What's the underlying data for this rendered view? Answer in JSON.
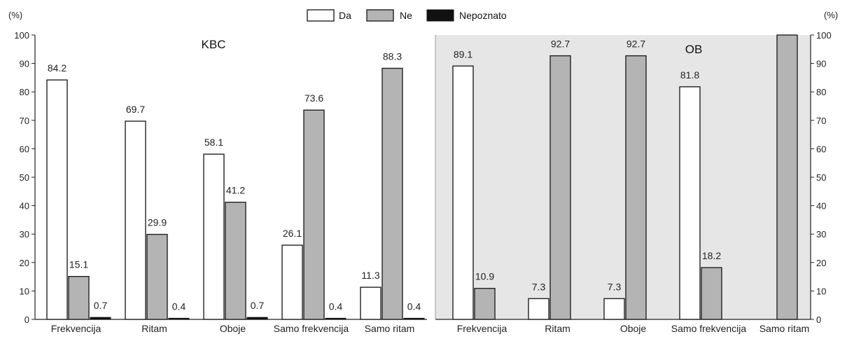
{
  "unit_label": "(%)",
  "legend": [
    {
      "key": "da",
      "label": "Da"
    },
    {
      "key": "ne",
      "label": "Ne"
    },
    {
      "key": "np",
      "label": "Nepoznato"
    }
  ],
  "colors": {
    "da": "#ffffff",
    "ne": "#b4b4b4",
    "np": "#111111",
    "panel_bg": "#e6e6e6"
  },
  "chart_data": [
    {
      "type": "bar",
      "title": "KBC",
      "categories": [
        "Frekvencija",
        "Ritam",
        "Oboje",
        "Samo frekvencija",
        "Samo ritam"
      ],
      "series": [
        {
          "name": "Da",
          "values": [
            84.2,
            69.7,
            58.1,
            26.1,
            11.3
          ]
        },
        {
          "name": "Ne",
          "values": [
            15.1,
            29.9,
            41.2,
            73.6,
            88.3
          ]
        },
        {
          "name": "Nepoznato",
          "values": [
            0.7,
            0.4,
            0.7,
            0.4,
            0.4
          ]
        }
      ],
      "ylabel": "(%)",
      "ylim": [
        0,
        100
      ],
      "yticks": [
        0,
        10,
        20,
        30,
        40,
        50,
        60,
        70,
        80,
        90,
        100
      ],
      "grid": false,
      "legend_position": "top"
    },
    {
      "type": "bar",
      "title": "OB",
      "categories": [
        "Frekvencija",
        "Ritam",
        "Oboje",
        "Samo frekvencija",
        "Samo ritam"
      ],
      "series": [
        {
          "name": "Da",
          "values": [
            89.1,
            7.3,
            7.3,
            81.8,
            0
          ]
        },
        {
          "name": "Ne",
          "values": [
            10.9,
            92.7,
            92.7,
            18.2,
            100
          ]
        },
        {
          "name": "Nepoznato",
          "values": [
            0,
            0,
            0,
            0,
            0
          ]
        }
      ],
      "labels": {
        "Da": [
          "89.1",
          "7.3",
          "7.3",
          "81.8",
          ""
        ],
        "Ne": [
          "10.9",
          "92.7",
          "92.7",
          "18.2",
          ""
        ]
      },
      "ylabel": "(%)",
      "ylim": [
        0,
        100
      ],
      "yticks": [
        0,
        10,
        20,
        30,
        40,
        50,
        60,
        70,
        80,
        90,
        100
      ],
      "grid": false,
      "axis_side": "right"
    }
  ]
}
